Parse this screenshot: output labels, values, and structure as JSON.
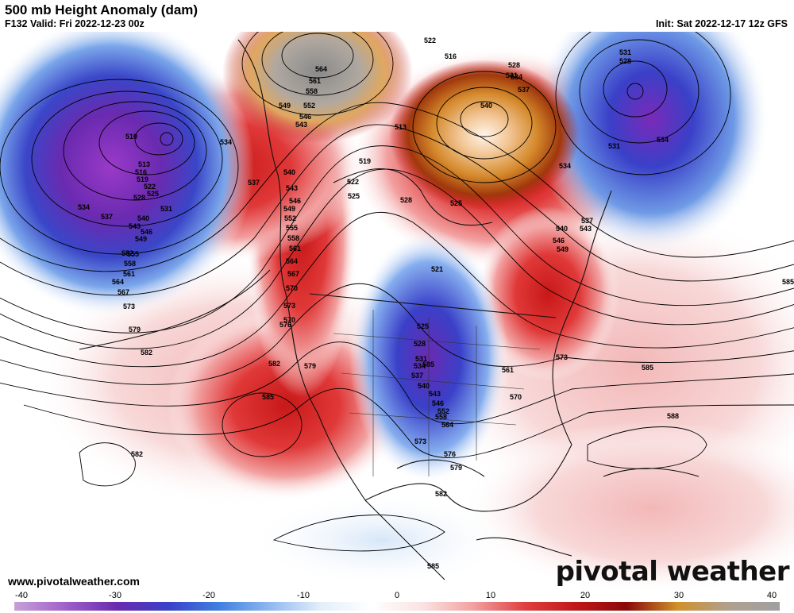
{
  "header": {
    "title": "500 mb Height Anomaly (dam)",
    "valid": "F132 Valid: Fri 2022-12-23 00z",
    "init": "Init: Sat 2022-12-17 12z GFS"
  },
  "footer": {
    "website": "www.pivotalweather.com",
    "brand": "pivotal weather"
  },
  "colorbar": {
    "ticks": [
      "-40",
      "-30",
      "-20",
      "-10",
      "0",
      "10",
      "20",
      "30",
      "40"
    ],
    "colors": [
      "#c8a0d8",
      "#a060c8",
      "#6a2ab0",
      "#3a40c8",
      "#3f7fe0",
      "#8fb8f0",
      "#e3eefa",
      "#ffffff",
      "#fbe2e2",
      "#f2a0a0",
      "#e04040",
      "#c01818",
      "#8a0a0a",
      "#d0902a",
      "#b0a090",
      "#a0a0a0"
    ]
  },
  "map": {
    "contour_labels": [
      "510",
      "513",
      "516",
      "519",
      "522",
      "525",
      "528",
      "531",
      "534",
      "537",
      "540",
      "543",
      "546",
      "549",
      "552",
      "555",
      "558",
      "561",
      "564",
      "567",
      "570",
      "573",
      "579",
      "582",
      "582",
      "585",
      "564",
      "561",
      "558",
      "552",
      "549",
      "546",
      "543",
      "534",
      "537",
      "540",
      "543",
      "546",
      "549",
      "552",
      "555",
      "558",
      "561",
      "564",
      "567",
      "570",
      "573",
      "576",
      "579",
      "582",
      "585",
      "522",
      "516",
      "519",
      "522",
      "525",
      "528",
      "513",
      "528",
      "531",
      "534",
      "537",
      "540",
      "525",
      "521",
      "525",
      "528",
      "531",
      "534",
      "537",
      "540",
      "543",
      "546",
      "552",
      "558",
      "564",
      "573",
      "576",
      "579",
      "582",
      "585",
      "561",
      "570",
      "573",
      "540",
      "543",
      "546",
      "549",
      "531",
      "528",
      "534",
      "531",
      "534",
      "537",
      "585",
      "585",
      "588"
    ]
  }
}
